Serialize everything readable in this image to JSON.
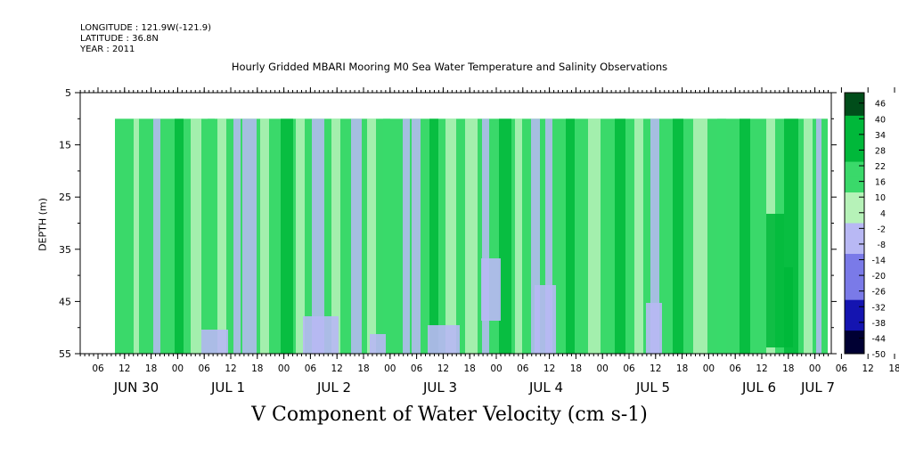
{
  "header": {
    "longitude": "LONGITUDE : 121.9W(-121.9)",
    "latitude": "LATITUDE : 36.8N",
    "year": "YEAR : 2011"
  },
  "chart_data": {
    "type": "heatmap",
    "title": "Hourly Gridded MBARI Mooring M0 Sea Water Temperature and Salinity Observations",
    "xlabel": "V Component of Water Velocity (cm s-1)",
    "ylabel": "DEPTH (m)",
    "y_ticks": [
      5,
      15,
      25,
      35,
      45,
      55
    ],
    "y_range": [
      5,
      55
    ],
    "y_reversed": true,
    "hour_ticks": [
      "06",
      "12",
      "18",
      "00",
      "06",
      "12",
      "18",
      "00",
      "06",
      "12",
      "18",
      "00",
      "06",
      "12",
      "18",
      "00",
      "06",
      "12",
      "18",
      "00",
      "06",
      "12",
      "18",
      "00",
      "06",
      "12",
      "18",
      "00",
      "06",
      "12",
      "18",
      "00"
    ],
    "day_labels": [
      "JUN 30",
      "JUL  1",
      "JUL  2",
      "JUL  3",
      "JUL  4",
      "JUL  5",
      "JUL  6",
      "JUL  7"
    ],
    "data_depth_range": [
      10,
      55
    ],
    "colorbar": {
      "labels": [
        "46",
        "40",
        "34",
        "28",
        "22",
        "16",
        "10",
        "4",
        "-2",
        "-8",
        "-14",
        "-20",
        "-26",
        "-32",
        "-38",
        "-44",
        "-50"
      ],
      "range": [
        -50,
        50
      ],
      "step": 3,
      "colors": {
        "max": "#004d1a",
        "strong_positive": "#00b83a",
        "positive": "#3ad96a",
        "weak_positive": "#b6f2b8",
        "weak_negative": "#b8b8f4",
        "negative": "#7a7ae8",
        "strong_negative": "#1414b0",
        "min": "#000033"
      }
    }
  }
}
